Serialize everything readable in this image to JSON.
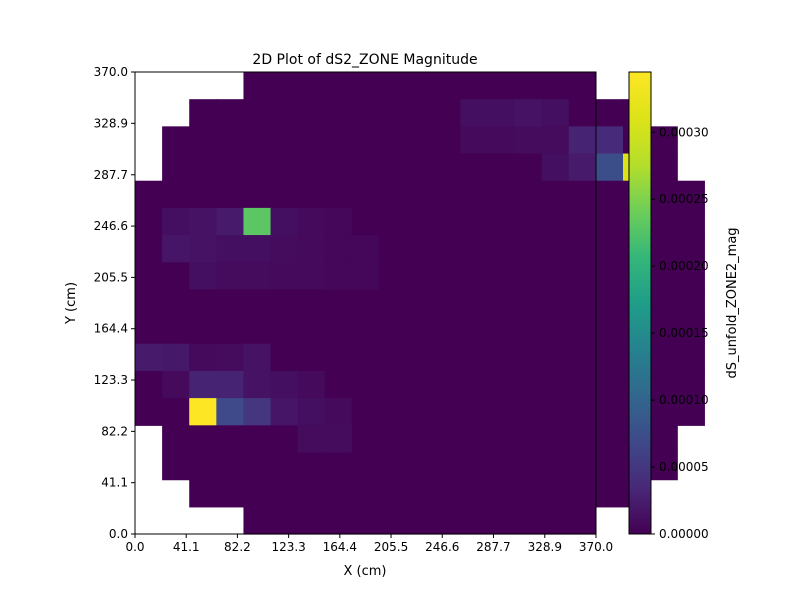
{
  "chart_data": {
    "type": "heatmap",
    "title": "2D Plot of dS2_ZONE Magnitude",
    "xlabel": "X (cm)",
    "ylabel": "Y (cm)",
    "colorbar_label": "dS_unfold_ZONE2_mag",
    "colormap": "viridis",
    "xlim": [
      0.0,
      370.0
    ],
    "ylim": [
      0.0,
      370.0
    ],
    "clim": [
      0.0,
      0.000345
    ],
    "x_ticks": [
      "0.0",
      "41.1",
      "82.2",
      "123.3",
      "164.4",
      "205.5",
      "246.6",
      "287.7",
      "328.9",
      "370.0"
    ],
    "y_ticks": [
      "0.0",
      "41.1",
      "82.2",
      "123.3",
      "164.4",
      "205.5",
      "246.6",
      "287.7",
      "328.9",
      "370.0"
    ],
    "colorbar_ticks": [
      "0.00000",
      "0.00005",
      "0.00010",
      "0.00015",
      "0.00020",
      "0.00025",
      "0.00030"
    ],
    "colorbar_tick_values": [
      0.0,
      5e-05,
      0.0001,
      0.00015,
      0.0002,
      0.00025,
      0.0003
    ],
    "grid": false,
    "cell_size": 21.76,
    "rows": [
      {
        "y0": 348.24,
        "values": [
          null,
          null,
          null,
          null,
          0,
          0,
          0,
          0,
          0,
          0,
          0,
          0,
          0,
          0,
          0,
          0,
          0,
          null,
          null,
          null,
          null
        ]
      },
      {
        "y0": 326.47,
        "values": [
          null,
          null,
          0,
          0,
          0,
          0,
          0,
          0,
          0,
          0,
          0,
          0,
          1.2e-05,
          1.2e-05,
          1.5e-05,
          1.2e-05,
          0,
          0,
          0,
          null,
          null
        ]
      },
      {
        "y0": 304.71,
        "values": [
          null,
          0,
          0,
          0,
          0,
          0,
          0,
          0,
          0,
          0,
          0,
          0,
          8e-06,
          8e-06,
          1e-05,
          1e-05,
          3e-05,
          3.8e-05,
          0,
          0,
          null
        ]
      },
      {
        "y0": 282.94,
        "values": [
          null,
          0,
          0,
          0,
          0,
          0,
          0,
          0,
          0,
          0,
          0,
          0,
          0,
          0,
          0,
          1.2e-05,
          2.2e-05,
          7.5e-05,
          0.00031,
          0,
          null
        ]
      },
      {
        "y0": 261.18,
        "values": [
          0,
          0,
          0,
          0,
          0,
          0,
          0,
          0,
          0,
          0,
          0,
          0,
          0,
          0,
          0,
          0,
          0,
          0,
          0,
          0,
          0
        ]
      },
      {
        "y0": 239.41,
        "values": [
          0,
          1.2e-05,
          1.5e-05,
          2.2e-05,
          0.00023,
          1.2e-05,
          8e-06,
          5e-06,
          0,
          0,
          0,
          0,
          0,
          0,
          0,
          0,
          0,
          0,
          0,
          0,
          0
        ]
      },
      {
        "y0": 217.65,
        "values": [
          0,
          1.8e-05,
          1.5e-05,
          1.2e-05,
          1.2e-05,
          1e-05,
          8e-06,
          5e-06,
          5e-06,
          0,
          0,
          0,
          0,
          0,
          0,
          0,
          0,
          0,
          0,
          0,
          0
        ]
      },
      {
        "y0": 195.88,
        "values": [
          0,
          0,
          1.2e-05,
          1e-05,
          1e-05,
          8e-06,
          8e-06,
          5e-06,
          5e-06,
          0,
          0,
          0,
          0,
          0,
          0,
          0,
          0,
          0,
          0,
          0,
          0
        ]
      },
      {
        "y0": 174.12,
        "values": [
          0,
          0,
          0,
          0,
          0,
          0,
          0,
          0,
          0,
          0,
          0,
          0,
          0,
          0,
          0,
          0,
          0,
          0,
          0,
          0,
          0
        ]
      },
      {
        "y0": 152.35,
        "values": [
          0,
          0,
          0,
          0,
          0,
          0,
          0,
          0,
          0,
          0,
          0,
          0,
          0,
          0,
          0,
          0,
          0,
          0,
          0,
          0,
          0
        ]
      },
      {
        "y0": 130.59,
        "values": [
          2.2e-05,
          2e-05,
          8e-06,
          1e-05,
          1.5e-05,
          0,
          0,
          0,
          0,
          0,
          0,
          0,
          0,
          0,
          0,
          0,
          0,
          0,
          0,
          0,
          0
        ]
      },
      {
        "y0": 108.82,
        "values": [
          0,
          8e-06,
          3e-05,
          3e-05,
          1.5e-05,
          1.2e-05,
          8e-06,
          0,
          0,
          0,
          0,
          0,
          0,
          0,
          0,
          0,
          0,
          0,
          0,
          0,
          0
        ]
      },
      {
        "y0": 87.06,
        "values": [
          0,
          0,
          0.000345,
          7e-05,
          5e-05,
          1.8e-05,
          1.2e-05,
          8e-06,
          0,
          0,
          0,
          0,
          0,
          0,
          0,
          0,
          0,
          0,
          0,
          0,
          0
        ]
      },
      {
        "y0": 65.29,
        "values": [
          null,
          0,
          0,
          0,
          0,
          0,
          1e-05,
          1e-05,
          0,
          0,
          0,
          0,
          0,
          0,
          0,
          0,
          0,
          0,
          0,
          0,
          null
        ]
      },
      {
        "y0": 43.53,
        "values": [
          null,
          0,
          0,
          0,
          0,
          0,
          0,
          0,
          0,
          0,
          0,
          0,
          0,
          0,
          0,
          0,
          0,
          0,
          0,
          0,
          null
        ]
      },
      {
        "y0": 21.76,
        "values": [
          null,
          null,
          0,
          0,
          0,
          0,
          0,
          0,
          0,
          0,
          0,
          0,
          0,
          0,
          0,
          0,
          0,
          0,
          0,
          null,
          null
        ]
      },
      {
        "y0": 0.0,
        "values": [
          null,
          null,
          null,
          null,
          0,
          0,
          0,
          0,
          0,
          0,
          0,
          0,
          0,
          0,
          0,
          0,
          0,
          null,
          null,
          null,
          null
        ]
      }
    ]
  }
}
